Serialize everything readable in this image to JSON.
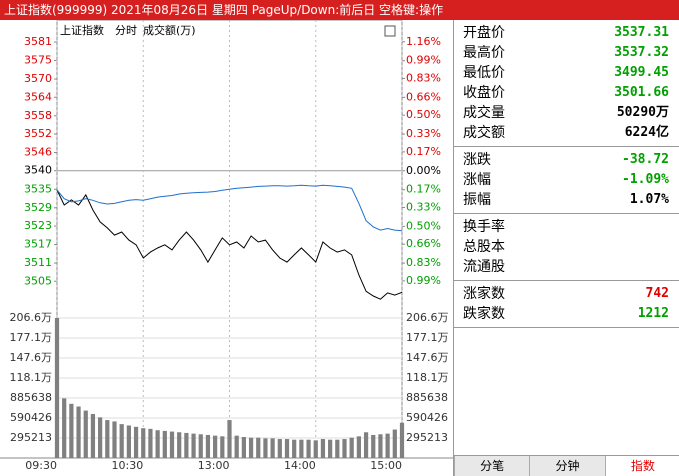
{
  "title_bar": {
    "text": "上证指数(999999) 2021年08月26日 星期四 PageUp/Down:前后日 空格键:操作"
  },
  "chart_data": [
    {
      "type": "line",
      "title": "上证指数",
      "subtitle": "分时",
      "annotation": "成交额(万)",
      "x": [
        0,
        5,
        10,
        15,
        20,
        25,
        30,
        35,
        40,
        45,
        50,
        55,
        60,
        65,
        70,
        75,
        80,
        85,
        90,
        95,
        100,
        105,
        110,
        115,
        120,
        125,
        130,
        135,
        140,
        145,
        150,
        155,
        160,
        165,
        170,
        175,
        180,
        185,
        190,
        195,
        200,
        205,
        210,
        215,
        220,
        225,
        230,
        235,
        240
      ],
      "xlim": [
        0,
        240
      ],
      "xticks": [
        {
          "value": 0,
          "label": "09:30"
        },
        {
          "value": 60,
          "label": "10:30"
        },
        {
          "value": 120,
          "label": "13:00"
        },
        {
          "value": 180,
          "label": "14:00"
        },
        {
          "value": 240,
          "label": "15:00"
        }
      ],
      "ylim": [
        3493.5,
        3581.4
      ],
      "yticks": [
        {
          "value": 3581.4,
          "label": "3581"
        },
        {
          "value": 3575.5,
          "label": "3575"
        },
        {
          "value": 3569.6,
          "label": "3570"
        },
        {
          "value": 3563.8,
          "label": "3564"
        },
        {
          "value": 3557.9,
          "label": "3558"
        },
        {
          "value": 3552.1,
          "label": "3552"
        },
        {
          "value": 3546.2,
          "label": "3546"
        },
        {
          "value": 3540.4,
          "label": "3540"
        },
        {
          "value": 3534.5,
          "label": "3535"
        },
        {
          "value": 3528.6,
          "label": "3529"
        },
        {
          "value": 3522.8,
          "label": "3523"
        },
        {
          "value": 3516.9,
          "label": "3517"
        },
        {
          "value": 3511.0,
          "label": "3511"
        },
        {
          "value": 3505.2,
          "label": "3505"
        }
      ],
      "y2lim": [
        -1.324,
        1.158
      ],
      "y2ticks": [
        {
          "value": 1.16,
          "label": "1.16%"
        },
        {
          "value": 0.99,
          "label": "0.99%"
        },
        {
          "value": 0.83,
          "label": "0.83%"
        },
        {
          "value": 0.66,
          "label": "0.66%"
        },
        {
          "value": 0.5,
          "label": "0.50%"
        },
        {
          "value": 0.33,
          "label": "0.33%"
        },
        {
          "value": 0.17,
          "label": "0.17%"
        },
        {
          "value": 0,
          "label": "0.00%"
        },
        {
          "value": -0.17,
          "label": "0.17%"
        },
        {
          "value": -0.33,
          "label": "0.33%"
        },
        {
          "value": -0.5,
          "label": "0.50%"
        },
        {
          "value": -0.66,
          "label": "0.66%"
        },
        {
          "value": -0.83,
          "label": "0.83%"
        },
        {
          "value": -0.99,
          "label": "0.99%"
        }
      ],
      "series": [
        {
          "color": "#000000",
          "values": [
            3534.3,
            3529.5,
            3531.1,
            3529.5,
            3532.7,
            3527.9,
            3524.1,
            3522.2,
            3519.9,
            3520.9,
            3518.3,
            3516.8,
            3512.6,
            3514.5,
            3515.8,
            3516.8,
            3515.2,
            3518.3,
            3520.9,
            3518.3,
            3515.2,
            3511.3,
            3515.2,
            3519.0,
            3516.8,
            3517.7,
            3515.8,
            3519.6,
            3517.7,
            3518.3,
            3515.2,
            3512.6,
            3511.3,
            3513.6,
            3515.8,
            3513.6,
            3511.3,
            3517.7,
            3515.8,
            3514.5,
            3515.2,
            3513.6,
            3507.2,
            3502.0,
            3500.5,
            3499.5,
            3501.5,
            3500.8,
            3501.7
          ]
        },
        {
          "color": "#1e6fd0",
          "values": [
            3534.3,
            3531.5,
            3530.5,
            3530.8,
            3531.5,
            3531.0,
            3530.2,
            3529.8,
            3530.0,
            3530.5,
            3531.0,
            3531.2,
            3531.0,
            3531.5,
            3532.0,
            3532.3,
            3532.5,
            3533.0,
            3533.2,
            3533.4,
            3533.5,
            3533.6,
            3533.8,
            3534.2,
            3534.5,
            3534.8,
            3535.0,
            3535.2,
            3535.4,
            3535.5,
            3535.6,
            3535.6,
            3535.5,
            3535.6,
            3535.8,
            3535.6,
            3535.5,
            3535.8,
            3535.6,
            3535.4,
            3535.2,
            3534.8,
            3530.0,
            3524.5,
            3522.5,
            3521.5,
            3522.0,
            3521.5,
            3521.3
          ]
        }
      ]
    },
    {
      "type": "bar",
      "x": [
        0,
        5,
        10,
        15,
        20,
        25,
        30,
        35,
        40,
        45,
        50,
        55,
        60,
        65,
        70,
        75,
        80,
        85,
        90,
        95,
        100,
        105,
        110,
        115,
        120,
        125,
        130,
        135,
        140,
        145,
        150,
        155,
        160,
        165,
        170,
        175,
        180,
        185,
        190,
        195,
        200,
        205,
        210,
        215,
        220,
        225,
        230,
        235,
        240
      ],
      "xlim": [
        0,
        240
      ],
      "ylim": [
        0,
        2066491
      ],
      "yticks": [
        {
          "value": 2066491,
          "label": "206.6万"
        },
        {
          "value": 1771278,
          "label": "177.1万"
        },
        {
          "value": 1476065,
          "label": "147.6万"
        },
        {
          "value": 1180852,
          "label": "118.1万"
        },
        885638,
        590426,
        295213
      ],
      "color": "#808080",
      "values": [
        2066491,
        880000,
        800000,
        760000,
        700000,
        650000,
        600000,
        560000,
        540000,
        500000,
        480000,
        460000,
        440000,
        430000,
        410000,
        400000,
        390000,
        380000,
        370000,
        360000,
        350000,
        340000,
        330000,
        320000,
        560000,
        330000,
        310000,
        300000,
        300000,
        290000,
        290000,
        280000,
        280000,
        270000,
        270000,
        270000,
        260000,
        280000,
        270000,
        270000,
        280000,
        300000,
        320000,
        380000,
        340000,
        350000,
        360000,
        420000,
        520000
      ]
    }
  ],
  "info_panel": {
    "groups": [
      [
        {
          "label": "开盘价",
          "value": "3537.31",
          "color": "#00a000"
        },
        {
          "label": "最高价",
          "value": "3537.32",
          "color": "#00a000"
        },
        {
          "label": "最低价",
          "value": "3499.45",
          "color": "#00a000"
        },
        {
          "label": "收盘价",
          "value": "3501.66",
          "color": "#00a000"
        },
        {
          "label": "成交量",
          "value": "50290万",
          "color": "#000000"
        },
        {
          "label": "成交额",
          "value": "6224亿",
          "color": "#000000"
        }
      ],
      [
        {
          "label": "涨跌",
          "value": "-38.72",
          "color": "#00a000"
        },
        {
          "label": "涨幅",
          "value": "-1.09%",
          "color": "#00a000"
        },
        {
          "label": "振幅",
          "value": "1.07%",
          "color": "#000000"
        }
      ],
      [
        {
          "label": "换手率"
        },
        {
          "label": "总股本"
        },
        {
          "label": "流通股"
        }
      ],
      [
        {
          "label": "涨家数",
          "value": "742",
          "color": "#e00000"
        },
        {
          "label": "跌家数",
          "value": "1212",
          "color": "#00a000"
        }
      ]
    ]
  },
  "tabs": [
    "分笔",
    "分钟",
    "指数"
  ]
}
